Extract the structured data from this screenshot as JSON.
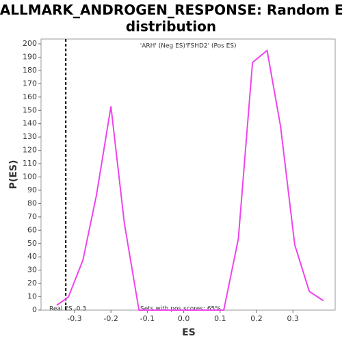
{
  "chart_data": {
    "type": "line",
    "title": "HALLMARK_ANDROGEN_RESPONSE: Random ES",
    "title_line2": "distribution",
    "x_label": "ES",
    "y_label": "P(ES)",
    "neg_label": "'ARH' (Neg ES)",
    "neg_color": "#2222dd",
    "pos_label": "'FSHD2' (Pos ES)",
    "pos_color": "#dd2222",
    "real_es_label": "Real ES -0.3",
    "pos_scores_label": "Sets with pos scores: 65%",
    "real_es": -0.324,
    "xlim": [
      -0.392,
      0.416
    ],
    "ylim": [
      0,
      203.6
    ],
    "xticks": [
      -0.3,
      -0.2,
      -0.1,
      {
        "value": 0,
        "label": "0.0"
      },
      0.1,
      0.2,
      0.3
    ],
    "yticks": [
      0,
      10,
      20,
      30,
      40,
      50,
      60,
      70,
      80,
      90,
      100,
      110,
      120,
      130,
      140,
      150,
      160,
      170,
      180,
      190,
      200
    ],
    "series": [
      {
        "color": "#ee44ee",
        "x": [
          -0.349,
          -0.317,
          -0.277,
          -0.24,
          -0.2,
          -0.163,
          -0.123,
          0.11,
          0.15,
          0.189,
          0.229,
          0.266,
          0.305,
          0.345,
          0.384
        ],
        "values": [
          3.6,
          9.8,
          37.5,
          86,
          153,
          65,
          0,
          0,
          53.5,
          186,
          195,
          138,
          49,
          14,
          7
        ]
      }
    ]
  }
}
